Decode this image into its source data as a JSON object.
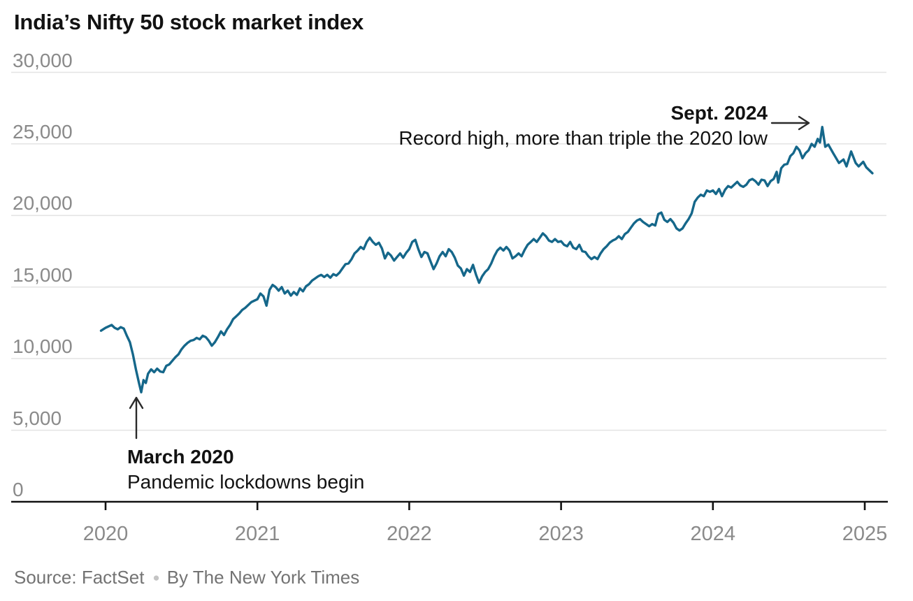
{
  "title": "India’s Nifty 50 stock market index",
  "source": {
    "prefix": "Source: FactSet",
    "separator": "●",
    "byline": "By The New York Times"
  },
  "colors": {
    "line": "#15678a",
    "grid": "#e3e3e3",
    "axis": "#121212",
    "tick_labels": "#8a8a8a",
    "annotation_text": "#121212",
    "arrow": "#2a2a2a"
  },
  "chart_data": {
    "type": "line",
    "title": "India’s Nifty 50 stock market index",
    "xlabel": "",
    "ylabel": "",
    "grid": true,
    "legend": "none",
    "x_range": [
      2019.95,
      2025.1
    ],
    "ylim": [
      0,
      30000
    ],
    "yticks": [
      {
        "value": 30000,
        "label": "30,000"
      },
      {
        "value": 25000,
        "label": "25,000"
      },
      {
        "value": 20000,
        "label": "20,000"
      },
      {
        "value": 15000,
        "label": "15,000"
      },
      {
        "value": 10000,
        "label": "10,000"
      },
      {
        "value": 5000,
        "label": "5,000"
      },
      {
        "value": 0,
        "label": "0"
      }
    ],
    "xticks": [
      {
        "value": 2020,
        "label": "2020"
      },
      {
        "value": 2021,
        "label": "2021"
      },
      {
        "value": 2022,
        "label": "2022"
      },
      {
        "value": 2023,
        "label": "2023"
      },
      {
        "value": 2024,
        "label": "2024"
      },
      {
        "value": 2025,
        "label": "2025"
      }
    ],
    "annotations": [
      {
        "id": "low",
        "title": "March 2020",
        "text": "Pandemic lockdowns begin",
        "arrow": "up",
        "points_to": {
          "x": 2020.23,
          "y": 7650
        }
      },
      {
        "id": "high",
        "title": "Sept. 2024",
        "text": "Record high, more than triple the 2020 low",
        "arrow": "right",
        "points_to": {
          "x": 2024.72,
          "y": 26180
        }
      }
    ],
    "series": [
      {
        "name": "Nifty 50 index",
        "points": [
          [
            2019.97,
            11950
          ],
          [
            2020.0,
            12150
          ],
          [
            2020.02,
            12250
          ],
          [
            2020.04,
            12350
          ],
          [
            2020.06,
            12150
          ],
          [
            2020.08,
            12050
          ],
          [
            2020.1,
            12200
          ],
          [
            2020.12,
            12100
          ],
          [
            2020.14,
            11600
          ],
          [
            2020.16,
            11150
          ],
          [
            2020.18,
            10300
          ],
          [
            2020.2,
            9250
          ],
          [
            2020.22,
            8300
          ],
          [
            2020.235,
            7650
          ],
          [
            2020.25,
            8500
          ],
          [
            2020.265,
            8300
          ],
          [
            2020.28,
            8950
          ],
          [
            2020.3,
            9250
          ],
          [
            2020.32,
            9050
          ],
          [
            2020.34,
            9300
          ],
          [
            2020.36,
            9100
          ],
          [
            2020.38,
            9050
          ],
          [
            2020.4,
            9500
          ],
          [
            2020.42,
            9600
          ],
          [
            2020.44,
            9850
          ],
          [
            2020.46,
            10100
          ],
          [
            2020.48,
            10300
          ],
          [
            2020.5,
            10650
          ],
          [
            2020.52,
            10900
          ],
          [
            2020.54,
            11100
          ],
          [
            2020.56,
            11250
          ],
          [
            2020.58,
            11300
          ],
          [
            2020.6,
            11450
          ],
          [
            2020.62,
            11350
          ],
          [
            2020.64,
            11600
          ],
          [
            2020.66,
            11500
          ],
          [
            2020.68,
            11250
          ],
          [
            2020.7,
            10900
          ],
          [
            2020.72,
            11150
          ],
          [
            2020.74,
            11500
          ],
          [
            2020.76,
            11900
          ],
          [
            2020.78,
            11650
          ],
          [
            2020.8,
            12050
          ],
          [
            2020.82,
            12350
          ],
          [
            2020.84,
            12750
          ],
          [
            2020.86,
            12950
          ],
          [
            2020.88,
            13150
          ],
          [
            2020.9,
            13400
          ],
          [
            2020.92,
            13550
          ],
          [
            2020.94,
            13750
          ],
          [
            2020.96,
            13950
          ],
          [
            2020.98,
            14050
          ],
          [
            2021.0,
            14150
          ],
          [
            2021.02,
            14550
          ],
          [
            2021.04,
            14350
          ],
          [
            2021.06,
            13700
          ],
          [
            2021.08,
            14800
          ],
          [
            2021.1,
            15150
          ],
          [
            2021.12,
            15000
          ],
          [
            2021.14,
            14750
          ],
          [
            2021.16,
            15000
          ],
          [
            2021.18,
            14550
          ],
          [
            2021.2,
            14750
          ],
          [
            2021.22,
            14400
          ],
          [
            2021.24,
            14650
          ],
          [
            2021.26,
            14450
          ],
          [
            2021.28,
            14900
          ],
          [
            2021.3,
            14700
          ],
          [
            2021.32,
            15050
          ],
          [
            2021.34,
            15200
          ],
          [
            2021.36,
            15450
          ],
          [
            2021.38,
            15600
          ],
          [
            2021.4,
            15750
          ],
          [
            2021.42,
            15850
          ],
          [
            2021.44,
            15700
          ],
          [
            2021.46,
            15850
          ],
          [
            2021.48,
            15650
          ],
          [
            2021.5,
            15900
          ],
          [
            2021.52,
            15800
          ],
          [
            2021.54,
            16000
          ],
          [
            2021.56,
            16300
          ],
          [
            2021.58,
            16600
          ],
          [
            2021.6,
            16650
          ],
          [
            2021.62,
            16950
          ],
          [
            2021.64,
            17350
          ],
          [
            2021.66,
            17550
          ],
          [
            2021.68,
            17800
          ],
          [
            2021.7,
            17650
          ],
          [
            2021.72,
            18150
          ],
          [
            2021.74,
            18450
          ],
          [
            2021.76,
            18150
          ],
          [
            2021.78,
            17950
          ],
          [
            2021.8,
            18100
          ],
          [
            2021.82,
            17700
          ],
          [
            2021.84,
            17000
          ],
          [
            2021.86,
            17400
          ],
          [
            2021.88,
            17200
          ],
          [
            2021.9,
            16850
          ],
          [
            2021.92,
            17100
          ],
          [
            2021.94,
            17350
          ],
          [
            2021.96,
            17050
          ],
          [
            2021.98,
            17400
          ],
          [
            2022.0,
            17650
          ],
          [
            2022.02,
            18150
          ],
          [
            2022.04,
            18300
          ],
          [
            2022.06,
            17650
          ],
          [
            2022.08,
            17100
          ],
          [
            2022.1,
            17450
          ],
          [
            2022.12,
            17350
          ],
          [
            2022.14,
            16800
          ],
          [
            2022.16,
            16250
          ],
          [
            2022.18,
            16650
          ],
          [
            2022.2,
            17150
          ],
          [
            2022.22,
            17450
          ],
          [
            2022.24,
            17150
          ],
          [
            2022.26,
            17650
          ],
          [
            2022.28,
            17450
          ],
          [
            2022.3,
            17050
          ],
          [
            2022.32,
            16500
          ],
          [
            2022.34,
            16300
          ],
          [
            2022.36,
            15800
          ],
          [
            2022.38,
            16250
          ],
          [
            2022.4,
            16050
          ],
          [
            2022.42,
            16550
          ],
          [
            2022.44,
            15850
          ],
          [
            2022.46,
            15300
          ],
          [
            2022.48,
            15750
          ],
          [
            2022.5,
            16050
          ],
          [
            2022.52,
            16250
          ],
          [
            2022.54,
            16650
          ],
          [
            2022.56,
            17150
          ],
          [
            2022.58,
            17550
          ],
          [
            2022.6,
            17750
          ],
          [
            2022.62,
            17550
          ],
          [
            2022.64,
            17800
          ],
          [
            2022.66,
            17550
          ],
          [
            2022.68,
            17000
          ],
          [
            2022.7,
            17150
          ],
          [
            2022.72,
            17350
          ],
          [
            2022.74,
            17150
          ],
          [
            2022.76,
            17600
          ],
          [
            2022.78,
            17950
          ],
          [
            2022.8,
            18150
          ],
          [
            2022.82,
            18350
          ],
          [
            2022.84,
            18150
          ],
          [
            2022.86,
            18450
          ],
          [
            2022.88,
            18750
          ],
          [
            2022.9,
            18550
          ],
          [
            2022.92,
            18250
          ],
          [
            2022.94,
            18150
          ],
          [
            2022.96,
            18350
          ],
          [
            2022.98,
            18150
          ],
          [
            2023.0,
            18200
          ],
          [
            2023.02,
            17950
          ],
          [
            2023.04,
            17850
          ],
          [
            2023.06,
            18150
          ],
          [
            2023.08,
            17750
          ],
          [
            2023.1,
            17650
          ],
          [
            2023.12,
            17950
          ],
          [
            2023.14,
            17500
          ],
          [
            2023.16,
            17450
          ],
          [
            2023.18,
            17150
          ],
          [
            2023.2,
            16950
          ],
          [
            2023.22,
            17100
          ],
          [
            2023.24,
            16950
          ],
          [
            2023.26,
            17350
          ],
          [
            2023.28,
            17650
          ],
          [
            2023.3,
            17850
          ],
          [
            2023.32,
            18100
          ],
          [
            2023.34,
            18250
          ],
          [
            2023.36,
            18350
          ],
          [
            2023.38,
            18550
          ],
          [
            2023.4,
            18350
          ],
          [
            2023.42,
            18700
          ],
          [
            2023.44,
            18850
          ],
          [
            2023.46,
            19150
          ],
          [
            2023.48,
            19450
          ],
          [
            2023.5,
            19650
          ],
          [
            2023.52,
            19750
          ],
          [
            2023.54,
            19550
          ],
          [
            2023.56,
            19400
          ],
          [
            2023.58,
            19250
          ],
          [
            2023.6,
            19400
          ],
          [
            2023.62,
            19300
          ],
          [
            2023.64,
            20100
          ],
          [
            2023.66,
            20200
          ],
          [
            2023.68,
            19700
          ],
          [
            2023.7,
            19550
          ],
          [
            2023.72,
            19750
          ],
          [
            2023.74,
            19500
          ],
          [
            2023.76,
            19100
          ],
          [
            2023.78,
            18950
          ],
          [
            2023.8,
            19100
          ],
          [
            2023.82,
            19450
          ],
          [
            2023.84,
            19750
          ],
          [
            2023.86,
            20150
          ],
          [
            2023.88,
            20950
          ],
          [
            2023.9,
            21250
          ],
          [
            2023.92,
            21450
          ],
          [
            2023.94,
            21350
          ],
          [
            2023.96,
            21750
          ],
          [
            2023.98,
            21650
          ],
          [
            2024.0,
            21750
          ],
          [
            2024.02,
            21500
          ],
          [
            2024.04,
            21850
          ],
          [
            2024.06,
            21350
          ],
          [
            2024.08,
            21800
          ],
          [
            2024.1,
            22050
          ],
          [
            2024.12,
            21950
          ],
          [
            2024.14,
            22150
          ],
          [
            2024.16,
            22350
          ],
          [
            2024.18,
            22100
          ],
          [
            2024.2,
            22000
          ],
          [
            2024.22,
            22150
          ],
          [
            2024.24,
            22450
          ],
          [
            2024.26,
            22550
          ],
          [
            2024.28,
            22400
          ],
          [
            2024.3,
            22150
          ],
          [
            2024.32,
            22500
          ],
          [
            2024.34,
            22450
          ],
          [
            2024.36,
            22050
          ],
          [
            2024.38,
            22400
          ],
          [
            2024.4,
            22550
          ],
          [
            2024.42,
            23050
          ],
          [
            2024.43,
            22300
          ],
          [
            2024.45,
            23300
          ],
          [
            2024.47,
            23550
          ],
          [
            2024.49,
            23600
          ],
          [
            2024.51,
            24150
          ],
          [
            2024.53,
            24350
          ],
          [
            2024.55,
            24800
          ],
          [
            2024.57,
            24550
          ],
          [
            2024.59,
            24000
          ],
          [
            2024.61,
            24350
          ],
          [
            2024.63,
            24550
          ],
          [
            2024.65,
            25000
          ],
          [
            2024.67,
            24800
          ],
          [
            2024.69,
            25350
          ],
          [
            2024.705,
            25100
          ],
          [
            2024.72,
            26180
          ],
          [
            2024.74,
            24800
          ],
          [
            2024.76,
            24950
          ],
          [
            2024.79,
            24390
          ],
          [
            2024.83,
            23670
          ],
          [
            2024.86,
            23910
          ],
          [
            2024.88,
            23430
          ],
          [
            2024.91,
            24470
          ],
          [
            2024.94,
            23670
          ],
          [
            2024.96,
            23430
          ],
          [
            2024.99,
            23750
          ],
          [
            2025.01,
            23360
          ],
          [
            2025.05,
            22950
          ]
        ]
      }
    ]
  }
}
